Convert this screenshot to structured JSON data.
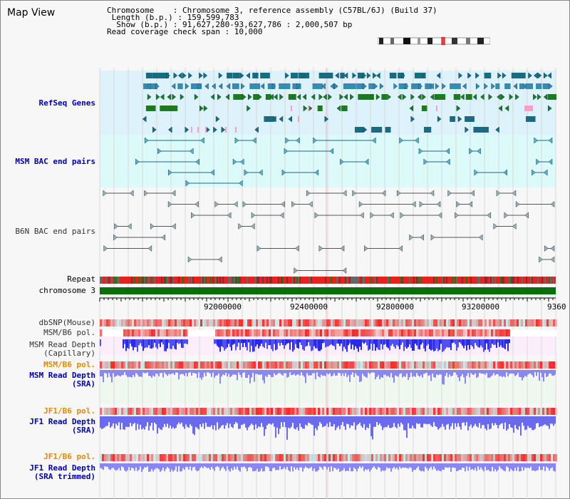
{
  "title": "Map View",
  "info": {
    "chromosome_key": "Chromosome",
    "chromosome_val": ": Chromosome 3, reference assembly (C57BL/6J) (Build 37)",
    "length_key": "Length (b.p.)",
    "length_val": ": 159,599,783",
    "show_key": "Show (b.p.)",
    "show_val": ": 91,627,280-93,627,786 : 2,000,507 bp",
    "coverage": "Read coverage check span : 10,000"
  },
  "tracks": {
    "refseq": "RefSeq Genes",
    "msm_bac": "MSM BAC end pairs",
    "b6n_bac": "B6N BAC end pairs",
    "repeat": "Repeat",
    "chromosome": "chromosome 3",
    "dbsnp": "dbSNP(Mouse)",
    "msm_b6_pol_1": "MSM/B6 pol.",
    "msm_read_depth_cap_1": "MSM Read Depth",
    "msm_read_depth_cap_2": "(Capillary)",
    "msm_b6_pol_2": "MSM/B6 pol.",
    "msm_read_depth_sra_1": "MSM Read Depth",
    "msm_read_depth_sra_2": "(SRA)",
    "jf1_b6_pol_1": "JF1/B6 pol.",
    "jf1_read_depth_sra_1": "JF1 Read Depth",
    "jf1_read_depth_sra_2": "(SRA)",
    "jf1_b6_pol_2": "JF1/B6 pol.",
    "jf1_read_depth_trim_1": "JF1 Read Depth",
    "jf1_read_depth_trim_2": "(SRA trimmed)"
  },
  "axis": {
    "ticks": [
      "92000000",
      "92400000",
      "92800000",
      "93200000",
      "9360"
    ]
  },
  "colors": {
    "refseq_bg": "#ddf2fb",
    "msm_bac_bg": "#ddfafa",
    "gene": "#1a6a80",
    "gene_green": "#1e7a1e",
    "chromosome_bar": "#0a6e0a",
    "repeat_red": "#e82020",
    "depth_blue": "#2a2ae6",
    "depth_light": "#8888f0"
  }
}
